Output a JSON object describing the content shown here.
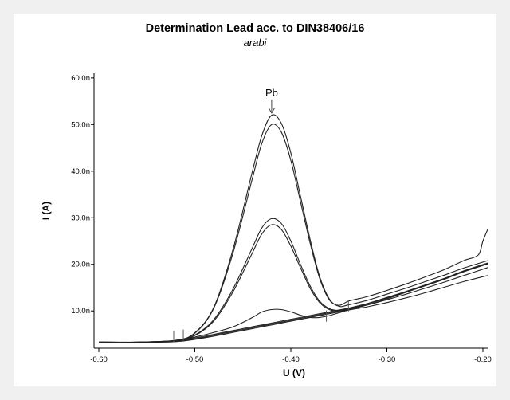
{
  "chart_data": {
    "type": "line",
    "title": "Determination Lead acc. to DIN38406/16",
    "subtitle": "arabi",
    "xlabel": "U (V)",
    "ylabel": "I (A)",
    "xlim": [
      -0.605,
      -0.195
    ],
    "ylim": [
      2.0,
      61.0
    ],
    "x_ticks": [
      -0.6,
      -0.5,
      -0.4,
      -0.3,
      -0.2
    ],
    "x_tick_labels": [
      "-0.60",
      "-0.50",
      "-0.40",
      "-0.30",
      "-0.20"
    ],
    "y_ticks": [
      10,
      20,
      30,
      40,
      50,
      60
    ],
    "y_tick_labels": [
      "10.0n",
      "20.0n",
      "30.0n",
      "40.0n",
      "50.0n",
      "60.0n"
    ],
    "grid": false,
    "annotations": [
      {
        "text": "Pb",
        "x": -0.42,
        "y": 52.3
      }
    ],
    "peak_markers": [
      {
        "x": -0.522,
        "y": 4.5
      },
      {
        "x": -0.512,
        "y": 4.8
      },
      {
        "x": -0.363,
        "y": 8.9
      },
      {
        "x": -0.34,
        "y": 11.1
      },
      {
        "x": -0.329,
        "y": 11.7
      }
    ],
    "series": [
      {
        "x": [
          -0.6,
          -0.56,
          -0.52,
          -0.5,
          -0.48,
          -0.46,
          -0.44,
          -0.43,
          -0.42,
          -0.41,
          -0.4,
          -0.39,
          -0.38,
          -0.37,
          -0.36,
          -0.35,
          -0.34,
          -0.32,
          -0.3,
          -0.28,
          -0.26,
          -0.24,
          -0.22,
          -0.205,
          -0.2,
          -0.195
        ],
        "y": [
          3.2,
          3.2,
          3.6,
          5.2,
          10.7,
          22.6,
          38.5,
          46.1,
          50.0,
          48.4,
          42.3,
          33.5,
          24.6,
          17.0,
          12.4,
          11.2,
          12.1,
          13.1,
          14.4,
          15.8,
          17.3,
          18.9,
          20.8,
          22.0,
          25.0,
          27.5
        ]
      },
      {
        "x": [
          -0.6,
          -0.56,
          -0.52,
          -0.5,
          -0.48,
          -0.46,
          -0.44,
          -0.43,
          -0.42,
          -0.41,
          -0.4,
          -0.39,
          -0.38,
          -0.37,
          -0.36,
          -0.35,
          -0.34,
          -0.32,
          -0.3,
          -0.28,
          -0.26,
          -0.24,
          -0.22,
          -0.195
        ],
        "y": [
          3.3,
          3.3,
          3.7,
          5.3,
          10.9,
          23.4,
          40.0,
          47.8,
          52.0,
          50.3,
          43.9,
          34.7,
          25.4,
          17.4,
          12.6,
          11.0,
          11.3,
          12.3,
          13.6,
          14.9,
          16.3,
          17.7,
          19.2,
          20.8
        ]
      },
      {
        "x": [
          -0.6,
          -0.56,
          -0.52,
          -0.5,
          -0.48,
          -0.46,
          -0.44,
          -0.43,
          -0.42,
          -0.41,
          -0.4,
          -0.39,
          -0.38,
          -0.37,
          -0.36,
          -0.35,
          -0.34,
          -0.32,
          -0.3,
          -0.28,
          -0.26,
          -0.24,
          -0.22,
          -0.195
        ],
        "y": [
          3.3,
          3.3,
          3.6,
          4.7,
          7.9,
          14.2,
          22.5,
          26.6,
          28.5,
          27.5,
          23.9,
          19.3,
          14.9,
          11.8,
          10.3,
          10.0,
          10.4,
          11.5,
          12.8,
          14.1,
          15.5,
          16.9,
          18.5,
          20.2
        ]
      },
      {
        "x": [
          -0.6,
          -0.56,
          -0.52,
          -0.5,
          -0.48,
          -0.46,
          -0.44,
          -0.43,
          -0.42,
          -0.41,
          -0.4,
          -0.39,
          -0.38,
          -0.37,
          -0.36,
          -0.35,
          -0.34,
          -0.32,
          -0.3,
          -0.28,
          -0.26,
          -0.24,
          -0.22,
          -0.195
        ],
        "y": [
          3.3,
          3.3,
          3.6,
          4.8,
          8.2,
          14.8,
          23.6,
          27.9,
          29.8,
          28.8,
          25.0,
          20.0,
          15.4,
          12.1,
          10.5,
          10.1,
          10.5,
          11.6,
          12.9,
          14.2,
          15.6,
          17.0,
          18.6,
          20.3
        ]
      },
      {
        "x": [
          -0.6,
          -0.56,
          -0.52,
          -0.5,
          -0.48,
          -0.46,
          -0.44,
          -0.43,
          -0.42,
          -0.41,
          -0.4,
          -0.39,
          -0.38,
          -0.37,
          -0.36,
          -0.35,
          -0.34,
          -0.32,
          -0.3,
          -0.28,
          -0.26,
          -0.24,
          -0.22,
          -0.195
        ],
        "y": [
          3.3,
          3.3,
          3.6,
          4.4,
          5.4,
          6.6,
          8.6,
          9.8,
          10.3,
          10.3,
          9.8,
          9.1,
          8.6,
          8.6,
          9.0,
          9.6,
          10.2,
          11.3,
          12.6,
          14.0,
          15.4,
          16.8,
          18.4,
          20.1
        ]
      },
      {
        "x": [
          -0.6,
          -0.56,
          -0.52,
          -0.5,
          -0.48,
          -0.46,
          -0.44,
          -0.43,
          -0.42,
          -0.41,
          -0.4,
          -0.39,
          -0.38,
          -0.37,
          -0.36,
          -0.35,
          -0.34,
          -0.32,
          -0.3,
          -0.28,
          -0.26,
          -0.24,
          -0.22,
          -0.195
        ],
        "y": [
          3.3,
          3.3,
          3.6,
          4.2,
          5.0,
          5.8,
          6.6,
          7.0,
          7.4,
          7.8,
          8.2,
          8.6,
          9.0,
          9.4,
          9.8,
          10.2,
          10.6,
          11.6,
          12.8,
          14.1,
          15.5,
          16.9,
          18.5,
          20.2
        ]
      },
      {
        "x": [
          -0.6,
          -0.56,
          -0.52,
          -0.5,
          -0.48,
          -0.46,
          -0.44,
          -0.43,
          -0.42,
          -0.41,
          -0.4,
          -0.39,
          -0.38,
          -0.37,
          -0.36,
          -0.35,
          -0.34,
          -0.32,
          -0.3,
          -0.28,
          -0.26,
          -0.24,
          -0.22,
          -0.195
        ],
        "y": [
          3.3,
          3.3,
          3.5,
          4.0,
          4.8,
          5.6,
          6.4,
          6.8,
          7.2,
          7.6,
          8.0,
          8.4,
          8.8,
          9.2,
          9.6,
          10.0,
          10.4,
          11.3,
          12.4,
          13.6,
          14.9,
          16.2,
          17.6,
          19.3
        ]
      },
      {
        "x": [
          -0.6,
          -0.56,
          -0.52,
          -0.5,
          -0.48,
          -0.46,
          -0.44,
          -0.43,
          -0.42,
          -0.41,
          -0.4,
          -0.39,
          -0.38,
          -0.37,
          -0.36,
          -0.35,
          -0.34,
          -0.32,
          -0.3,
          -0.28,
          -0.26,
          -0.24,
          -0.22,
          -0.195
        ],
        "y": [
          3.2,
          3.2,
          3.4,
          3.9,
          4.6,
          5.4,
          6.2,
          6.6,
          7.0,
          7.4,
          7.8,
          8.2,
          8.6,
          9.0,
          9.4,
          9.8,
          10.2,
          10.9,
          11.8,
          12.8,
          13.9,
          15.1,
          16.3,
          17.6
        ]
      }
    ]
  }
}
